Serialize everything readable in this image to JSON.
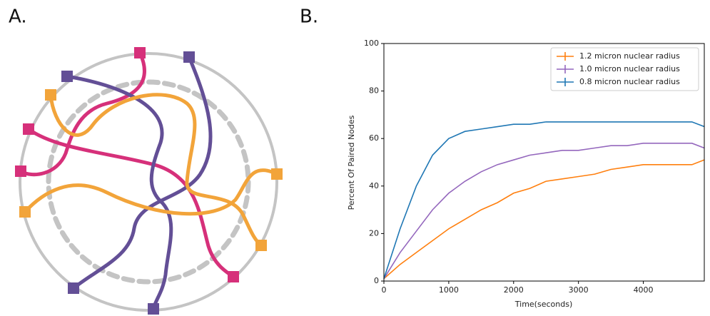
{
  "panel_labels": [
    "A.",
    "B."
  ],
  "chart_data": {
    "type": "line",
    "xlabel": "Time(seconds)",
    "ylabel": "Percent Of Paired Nodes",
    "x": [
      0,
      250,
      500,
      750,
      1000,
      1250,
      1500,
      1750,
      2000,
      2250,
      2500,
      2750,
      3000,
      3250,
      3500,
      3750,
      4000,
      4250,
      4500,
      4750,
      4940
    ],
    "series": [
      {
        "name": "1.2 micron nuclear radius",
        "color": "#ff7f0e",
        "values": [
          1,
          7,
          12,
          17,
          22,
          26,
          30,
          33,
          37,
          39,
          42,
          43,
          44,
          45,
          47,
          48,
          49,
          49,
          49,
          49,
          51
        ]
      },
      {
        "name": "1.0 micron nuclear radius",
        "color": "#9467bd",
        "values": [
          1,
          12,
          21,
          30,
          37,
          42,
          46,
          49,
          51,
          53,
          54,
          55,
          55,
          56,
          57,
          57,
          58,
          58,
          58,
          58,
          56
        ]
      },
      {
        "name": "0.8 micron nuclear radius",
        "color": "#1f77b4",
        "values": [
          1,
          22,
          40,
          53,
          60,
          63,
          64,
          65,
          66,
          66,
          67,
          67,
          67,
          67,
          67,
          67,
          67,
          67,
          67,
          67,
          65
        ]
      }
    ],
    "xlim": [
      0,
      4940
    ],
    "xticks": [
      0,
      1000,
      2000,
      3000,
      4000
    ],
    "ylim": [
      0,
      100
    ],
    "yticks": [
      0,
      20,
      40,
      60,
      80,
      100
    ],
    "legend": "upper right"
  }
}
